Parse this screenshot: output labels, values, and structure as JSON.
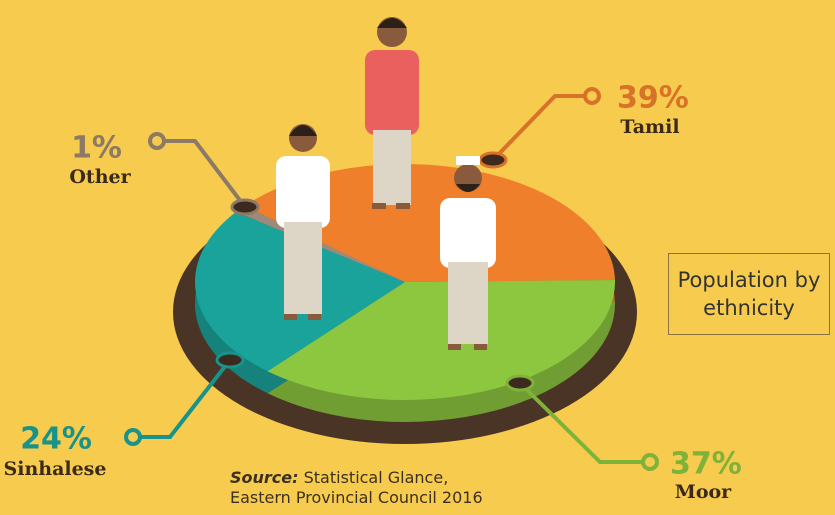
{
  "chart_data": {
    "type": "pie",
    "title": "Population by ethnicity",
    "categories": [
      "Tamil",
      "Moor",
      "Sinhalese",
      "Other"
    ],
    "values": [
      39,
      37,
      24,
      1
    ],
    "value_labels": [
      "39%",
      "37%",
      "24%",
      "1%"
    ],
    "colors": [
      "#f07f2c",
      "#8dc63f",
      "#1aa39a",
      "#9e8a7a"
    ],
    "source": {
      "label": "Source:",
      "lines": [
        "Statistical Glance,",
        "Eastern Provincial Council 2016"
      ]
    }
  }
}
